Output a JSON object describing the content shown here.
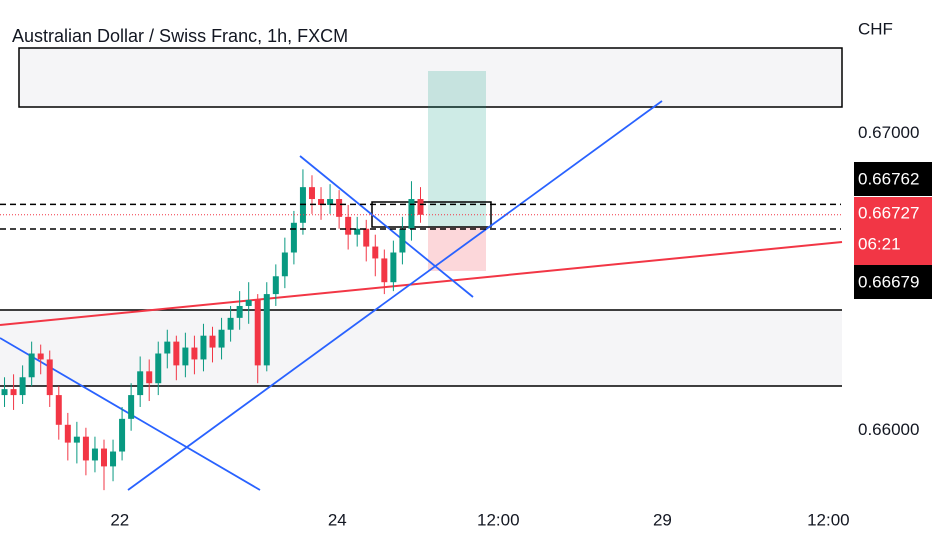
{
  "chart_data": {
    "type": "candlestick",
    "title": "Australian Dollar / Swiss Franc, 1h, FXCM",
    "y_unit": "CHF",
    "x": [
      1,
      3,
      5,
      7,
      9,
      11,
      13,
      15,
      17,
      19,
      21,
      23,
      25,
      27,
      29,
      31,
      33,
      35,
      37,
      39,
      41,
      43,
      45,
      47,
      49,
      51,
      53,
      55,
      57,
      59,
      61,
      63,
      65,
      67,
      69,
      71,
      73,
      75,
      77,
      79,
      81,
      83,
      85,
      87,
      89,
      91,
      93
    ],
    "open": [
      0.6612,
      0.6614,
      0.6612,
      0.6618,
      0.6626,
      0.6624,
      0.6612,
      0.6602,
      0.6596,
      0.6598,
      0.659,
      0.6594,
      0.6588,
      0.6593,
      0.6604,
      0.6612,
      0.662,
      0.6616,
      0.6626,
      0.663,
      0.6622,
      0.6628,
      0.6624,
      0.6632,
      0.6628,
      0.6634,
      0.6638,
      0.6642,
      0.6644,
      0.6622,
      0.6646,
      0.6652,
      0.666,
      0.667,
      0.6682,
      0.6678,
      0.6676,
      0.6678,
      0.6672,
      0.6666,
      0.6668,
      0.6662,
      0.6658,
      0.665,
      0.666,
      0.6668,
      0.6678
    ],
    "high": [
      0.6618,
      0.6619,
      0.6622,
      0.663,
      0.6629,
      0.6627,
      0.6615,
      0.6606,
      0.6603,
      0.6601,
      0.6598,
      0.6597,
      0.6597,
      0.6608,
      0.6616,
      0.6625,
      0.6624,
      0.663,
      0.6634,
      0.6632,
      0.6633,
      0.6632,
      0.6636,
      0.6635,
      0.6638,
      0.6642,
      0.6647,
      0.665,
      0.6646,
      0.665,
      0.6656,
      0.6665,
      0.6674,
      0.6688,
      0.6686,
      0.6682,
      0.6683,
      0.6681,
      0.6676,
      0.6672,
      0.6671,
      0.6666,
      0.6661,
      0.6664,
      0.6672,
      0.6684,
      0.6682
    ],
    "low": [
      0.6608,
      0.6607,
      0.6609,
      0.6615,
      0.6619,
      0.6608,
      0.6597,
      0.659,
      0.6589,
      0.6585,
      0.6586,
      0.658,
      0.6583,
      0.659,
      0.66,
      0.6608,
      0.661,
      0.6612,
      0.6621,
      0.6617,
      0.6618,
      0.6619,
      0.662,
      0.6623,
      0.6624,
      0.663,
      0.6634,
      0.6636,
      0.6616,
      0.662,
      0.6642,
      0.6648,
      0.6656,
      0.6666,
      0.6673,
      0.6671,
      0.6673,
      0.6668,
      0.6661,
      0.6662,
      0.6657,
      0.6652,
      0.6646,
      0.6647,
      0.6656,
      0.6664,
      0.667
    ],
    "close": [
      0.6614,
      0.6612,
      0.6618,
      0.6626,
      0.6624,
      0.6612,
      0.6602,
      0.6596,
      0.6598,
      0.659,
      0.6594,
      0.6588,
      0.6593,
      0.6604,
      0.6612,
      0.662,
      0.6616,
      0.6626,
      0.663,
      0.6622,
      0.6628,
      0.6624,
      0.6632,
      0.6628,
      0.6634,
      0.6638,
      0.6642,
      0.6644,
      0.6622,
      0.6646,
      0.6652,
      0.666,
      0.667,
      0.6682,
      0.6678,
      0.6676,
      0.6678,
      0.6672,
      0.6666,
      0.6668,
      0.6662,
      0.6658,
      0.665,
      0.666,
      0.6668,
      0.6678,
      0.66727
    ],
    "up_color": "#089981",
    "down_color": "#f23645",
    "xlim": [
      0,
      186
    ],
    "xticks": [
      {
        "value": 26.5,
        "label": "22"
      },
      {
        "value": 74.6,
        "label": "24"
      },
      {
        "value": 110.2,
        "label": "12:00"
      },
      {
        "value": 146.5,
        "label": "29"
      },
      {
        "value": 183.2,
        "label": "12:00"
      }
    ],
    "ylim": [
      0.6575,
      0.6745
    ],
    "yticks": [
      {
        "value": 0.66,
        "label": "0.66000"
      },
      {
        "value": 0.67,
        "label": "0.67000"
      }
    ],
    "last_price": {
      "value": 0.66727,
      "label": "0.66727"
    },
    "countdown": "06:21",
    "levels": [
      {
        "value": 0.66762,
        "label": "0.66762"
      },
      {
        "value": 0.66679,
        "label": "0.66679"
      }
    ]
  }
}
